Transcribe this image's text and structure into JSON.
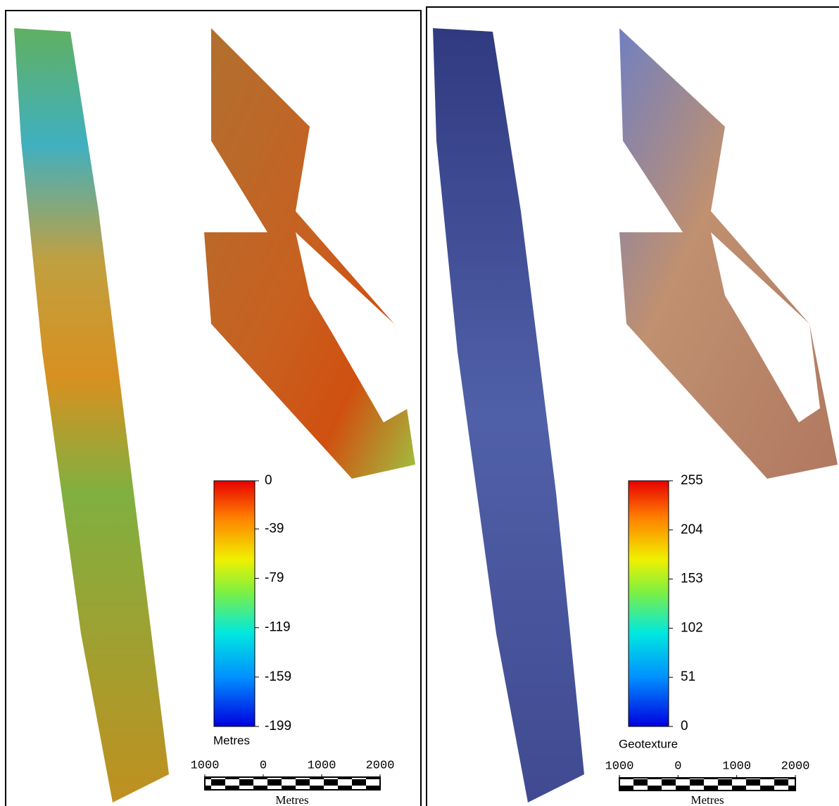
{
  "panels": [
    {
      "colorbar": {
        "label": "Metres",
        "vlim": [
          -199,
          0
        ],
        "ticks": [
          0,
          -39,
          -79,
          -119,
          -159,
          -199
        ]
      },
      "scalebar": {
        "xlim": [
          -1000,
          2000
        ],
        "ticks": [
          {
            "value": -1000,
            "label": "1000"
          },
          0,
          1000,
          2000
        ],
        "unit": "Metres"
      }
    },
    {
      "colorbar": {
        "label": "Geotexture",
        "vlim": [
          0,
          255
        ],
        "ticks": [
          255,
          204,
          153,
          102,
          51,
          0
        ]
      },
      "scalebar": {
        "xlim": [
          -1000,
          2000
        ],
        "ticks": [
          {
            "value": -1000,
            "label": "1000"
          },
          0,
          1000,
          2000
        ],
        "unit": "Metres"
      }
    }
  ]
}
